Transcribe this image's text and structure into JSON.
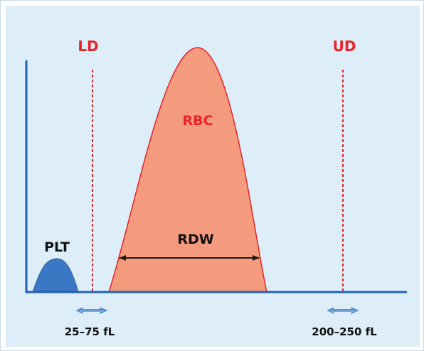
{
  "labels": {
    "ld": "LD",
    "ud": "UD",
    "rbc": "RBC",
    "plt": "PLT",
    "rdw": "RDW",
    "low_range": "25–75 fL",
    "high_range": "200–250 fL"
  },
  "colors": {
    "background": "#ddeef9",
    "axis": "#1f63b8",
    "rbc_fill": "#f49b7e",
    "rbc_stroke": "#e8232a",
    "plt_fill": "#3b78c4",
    "discriminator_line": "#d8252b",
    "red_text": "#e8232a",
    "black_text": "#111111",
    "arrow": "#1b1b1b",
    "range_arrow": "#4a86c8"
  }
}
